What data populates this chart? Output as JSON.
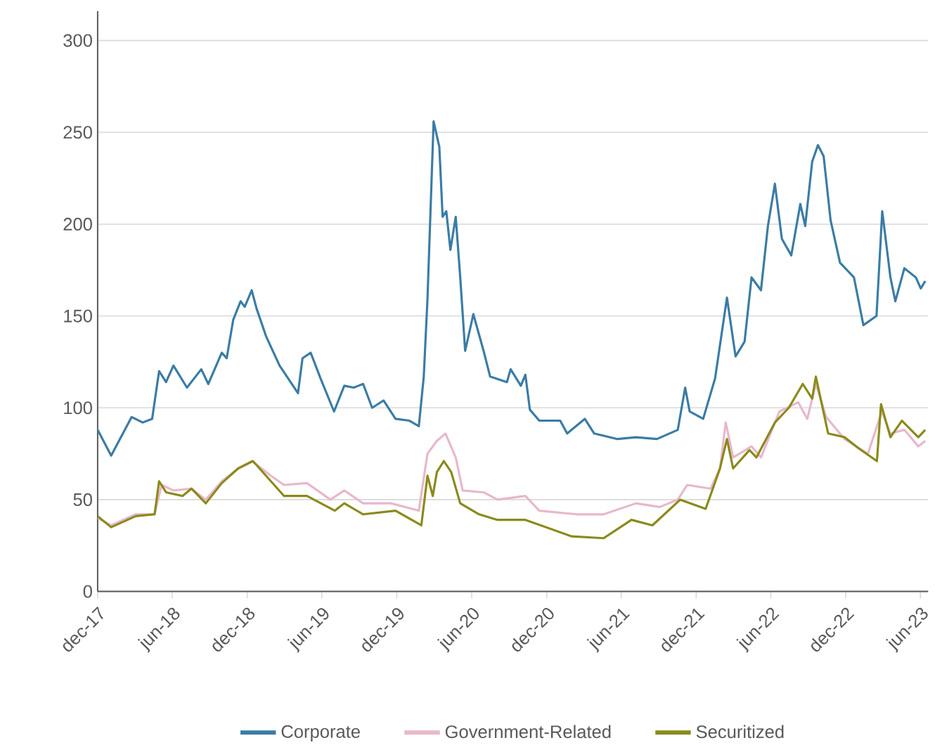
{
  "chart_data": {
    "type": "line",
    "xlim": [
      "2017-12-01",
      "2023-06-20"
    ],
    "ylim": [
      0,
      316
    ],
    "yticks": [
      0,
      50,
      100,
      150,
      200,
      250,
      300
    ],
    "xticks": [
      {
        "value": "2017-12-01",
        "label": "dec-17"
      },
      {
        "value": "2018-06-01",
        "label": "jun-18"
      },
      {
        "value": "2018-12-01",
        "label": "dec-18"
      },
      {
        "value": "2019-06-01",
        "label": "jun-19"
      },
      {
        "value": "2019-12-01",
        "label": "dec-19"
      },
      {
        "value": "2020-06-01",
        "label": "jun-20"
      },
      {
        "value": "2020-12-01",
        "label": "dec-20"
      },
      {
        "value": "2021-06-01",
        "label": "jun-21"
      },
      {
        "value": "2021-12-01",
        "label": "dec-21"
      },
      {
        "value": "2022-06-01",
        "label": "jun-22"
      },
      {
        "value": "2022-12-01",
        "label": "dec-22"
      },
      {
        "value": "2023-06-01",
        "label": "jun-23"
      }
    ],
    "grid": "y",
    "legend": "bottom",
    "marker": "none",
    "line_style": "solid",
    "series": [
      {
        "name": "Corporate",
        "color": "#3a7ca5",
        "x": [
          "2017-12-01",
          "2018-01-03",
          "2018-02-22",
          "2018-03-21",
          "2018-04-13",
          "2018-04-30",
          "2018-05-17",
          "2018-06-04",
          "2018-07-07",
          "2018-08-11",
          "2018-08-28",
          "2018-09-30",
          "2018-10-12",
          "2018-10-28",
          "2018-11-15",
          "2018-11-25",
          "2018-12-12",
          "2018-12-24",
          "2019-01-16",
          "2019-02-18",
          "2019-04-04",
          "2019-04-15",
          "2019-05-05",
          "2019-05-29",
          "2019-07-01",
          "2019-07-26",
          "2019-08-18",
          "2019-09-10",
          "2019-10-02",
          "2019-10-30",
          "2019-11-28",
          "2020-01-01",
          "2020-01-24",
          "2020-02-05",
          "2020-02-14",
          "2020-02-29",
          "2020-03-14",
          "2020-03-22",
          "2020-03-31",
          "2020-04-10",
          "2020-04-23",
          "2020-05-04",
          "2020-05-16",
          "2020-06-05",
          "2020-06-30",
          "2020-07-16",
          "2020-08-26",
          "2020-09-04",
          "2020-09-29",
          "2020-10-10",
          "2020-10-21",
          "2020-11-13",
          "2021-01-03",
          "2021-01-20",
          "2021-03-04",
          "2021-03-27",
          "2021-05-23",
          "2021-07-07",
          "2021-08-27",
          "2021-10-17",
          "2021-11-04",
          "2021-11-15",
          "2021-12-18",
          "2022-01-16",
          "2022-02-14",
          "2022-03-07",
          "2022-03-29",
          "2022-04-15",
          "2022-05-08",
          "2022-05-25",
          "2022-06-11",
          "2022-06-28",
          "2022-07-21",
          "2022-08-12",
          "2022-08-24",
          "2022-09-10",
          "2022-09-24",
          "2022-10-08",
          "2022-10-25",
          "2022-11-17",
          "2022-12-21",
          "2023-01-13",
          "2023-02-14",
          "2023-02-28",
          "2023-03-20",
          "2023-04-01",
          "2023-04-23",
          "2023-05-21",
          "2023-06-02",
          "2023-06-13"
        ],
        "values": [
          88,
          74,
          95,
          92,
          94,
          120,
          114,
          123,
          111,
          121,
          113,
          130,
          127,
          148,
          158,
          155,
          164,
          154,
          139,
          123,
          108,
          127,
          130,
          116,
          98,
          112,
          111,
          113,
          100,
          104,
          94,
          93,
          90,
          117,
          159,
          256,
          242,
          204,
          207,
          186,
          204,
          171,
          131,
          151,
          131,
          117,
          114,
          121,
          112,
          118,
          99,
          93,
          93,
          86,
          94,
          86,
          83,
          84,
          83,
          88,
          111,
          98,
          94,
          116,
          160,
          128,
          136,
          171,
          164,
          199,
          222,
          192,
          183,
          211,
          199,
          234,
          243,
          237,
          202,
          179,
          171,
          145,
          150,
          207,
          171,
          158,
          176,
          171,
          165,
          169
        ]
      },
      {
        "name": "Government-Related",
        "color": "#e8b7cc",
        "x": [
          "2017-12-01",
          "2018-01-03",
          "2018-03-04",
          "2018-04-19",
          "2018-05-06",
          "2018-06-04",
          "2018-07-18",
          "2018-08-22",
          "2018-09-30",
          "2018-11-09",
          "2018-12-13",
          "2019-01-28",
          "2019-03-01",
          "2019-04-26",
          "2019-06-22",
          "2019-07-26",
          "2019-09-10",
          "2019-11-17",
          "2020-01-24",
          "2020-02-14",
          "2020-03-08",
          "2020-03-29",
          "2020-04-23",
          "2020-05-10",
          "2020-06-30",
          "2020-08-03",
          "2020-10-10",
          "2020-11-13",
          "2021-02-12",
          "2021-04-19",
          "2021-07-07",
          "2021-09-03",
          "2021-10-17",
          "2021-11-09",
          "2022-01-05",
          "2022-01-28",
          "2022-02-11",
          "2022-03-01",
          "2022-04-15",
          "2022-05-08",
          "2022-06-22",
          "2022-08-07",
          "2022-08-29",
          "2022-09-19",
          "2022-10-14",
          "2022-11-28",
          "2023-01-24",
          "2023-02-27",
          "2023-03-20",
          "2023-04-23",
          "2023-05-27",
          "2023-06-13"
        ],
        "values": [
          40,
          36,
          42,
          42,
          58,
          55,
          56,
          50,
          60,
          67,
          71,
          63,
          58,
          59,
          50,
          55,
          48,
          48,
          44,
          75,
          82,
          86,
          73,
          55,
          54,
          50,
          52,
          44,
          42,
          42,
          48,
          46,
          50,
          58,
          56,
          67,
          92,
          73,
          79,
          73,
          98,
          103,
          94,
          113,
          95,
          83,
          75,
          98,
          86,
          88,
          79,
          82
        ]
      },
      {
        "name": "Securitized",
        "color": "#8a8a1a",
        "x": [
          "2017-12-01",
          "2018-01-03",
          "2018-03-04",
          "2018-04-19",
          "2018-04-30",
          "2018-05-17",
          "2018-06-26",
          "2018-07-18",
          "2018-08-22",
          "2018-09-30",
          "2018-11-09",
          "2018-12-15",
          "2019-01-28",
          "2019-03-01",
          "2019-04-26",
          "2019-07-03",
          "2019-07-26",
          "2019-09-10",
          "2019-11-28",
          "2020-01-30",
          "2020-02-14",
          "2020-02-27",
          "2020-03-08",
          "2020-03-25",
          "2020-04-12",
          "2020-05-04",
          "2020-06-19",
          "2020-08-03",
          "2020-10-10",
          "2021-01-31",
          "2021-04-19",
          "2021-06-26",
          "2021-08-16",
          "2021-10-23",
          "2021-12-24",
          "2022-01-28",
          "2022-02-14",
          "2022-03-01",
          "2022-04-10",
          "2022-04-27",
          "2022-06-11",
          "2022-07-15",
          "2022-08-18",
          "2022-09-10",
          "2022-09-19",
          "2022-10-19",
          "2022-11-28",
          "2023-01-01",
          "2023-02-15",
          "2023-02-25",
          "2023-03-20",
          "2023-04-17",
          "2023-05-27",
          "2023-06-13"
        ],
        "values": [
          41,
          35,
          41,
          42,
          60,
          54,
          52,
          56,
          48,
          59,
          67,
          71,
          60,
          52,
          52,
          44,
          48,
          42,
          44,
          36,
          63,
          52,
          65,
          71,
          65,
          48,
          42,
          39,
          39,
          30,
          29,
          39,
          36,
          50,
          45,
          67,
          83,
          67,
          77,
          73,
          92,
          100,
          113,
          105,
          117,
          86,
          84,
          78,
          71,
          102,
          84,
          93,
          84,
          88
        ]
      }
    ]
  }
}
